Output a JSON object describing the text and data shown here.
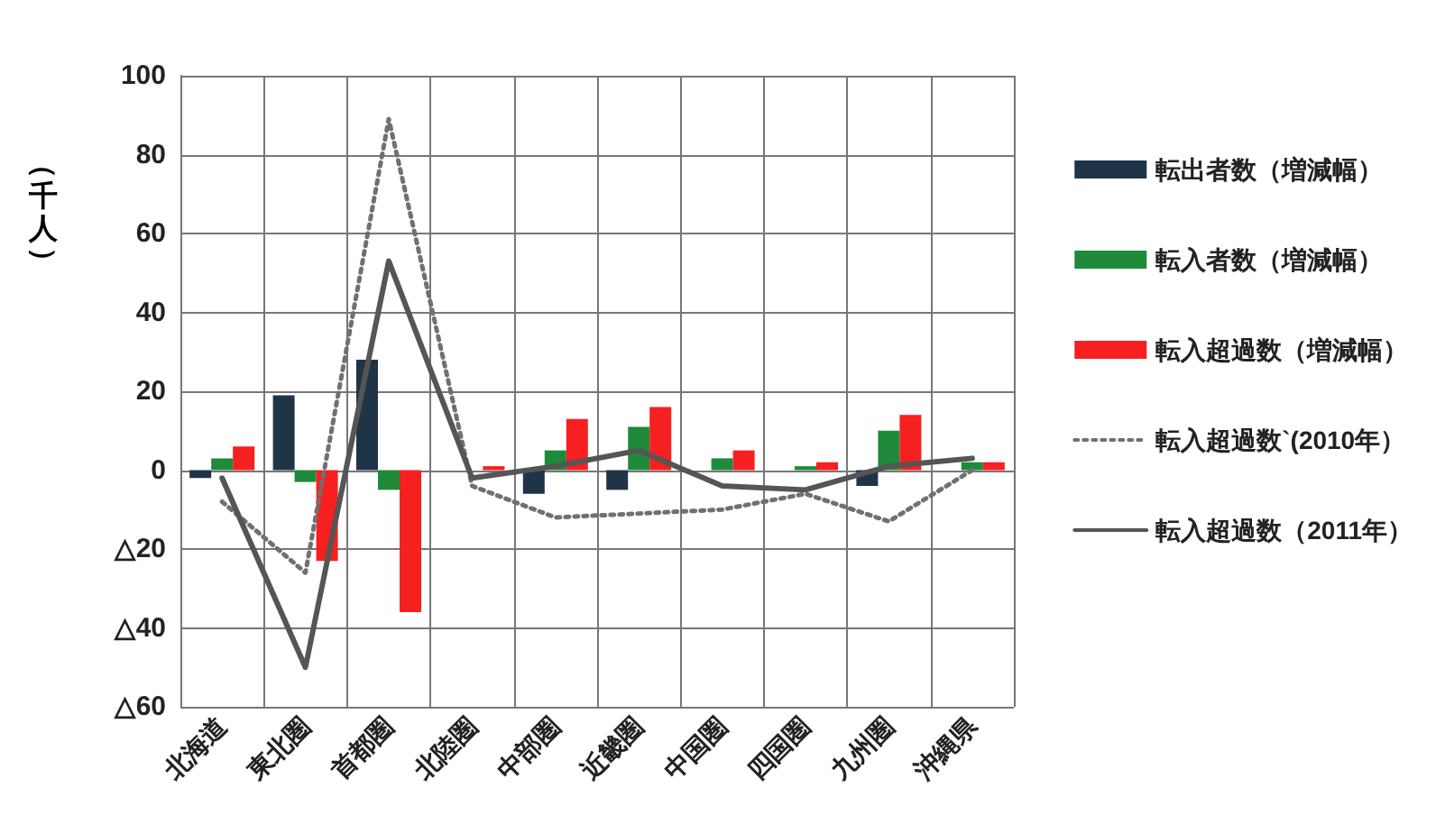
{
  "chart_data": {
    "type": "bar",
    "ylabel": "（千人）",
    "categories": [
      "北海道",
      "東北圏",
      "首都圏",
      "北陸圏",
      "中部圏",
      "近畿圏",
      "中国圏",
      "四国圏",
      "九州圏",
      "沖縄県"
    ],
    "series": [
      {
        "name": "転出者数（増減幅）",
        "color": "#1f3447",
        "values": [
          -2,
          19,
          28,
          0,
          -6,
          -5,
          0,
          0,
          -4,
          0
        ]
      },
      {
        "name": "転入者数（増減幅）",
        "color": "#1e8a3a",
        "values": [
          3,
          -3,
          -5,
          0,
          5,
          11,
          3,
          1,
          10,
          2
        ]
      },
      {
        "name": "転入超過数（増減幅）",
        "color": "#f5201f",
        "values": [
          6,
          -23,
          -36,
          1,
          13,
          16,
          5,
          2,
          14,
          2
        ]
      },
      {
        "name": "転入超過数`(2010年）",
        "type": "line",
        "line_style": "dotted",
        "color": "#707070",
        "values": [
          -8,
          -26,
          89,
          -4,
          -12,
          -11,
          -10,
          -6,
          -13,
          0
        ]
      },
      {
        "name": "転入超過数（2011年）",
        "type": "line",
        "line_style": "solid",
        "color": "#555555",
        "values": [
          -2,
          -50,
          53,
          -2,
          1,
          5,
          -4,
          -5,
          1,
          3
        ]
      }
    ],
    "ylim": [
      -60,
      100
    ],
    "yticks": [
      {
        "value": -60,
        "label": "△60"
      },
      {
        "value": -40,
        "label": "△40"
      },
      {
        "value": -20,
        "label": "△20"
      },
      0,
      20,
      40,
      60,
      80,
      100
    ],
    "grid": true,
    "legend": "right",
    "marker": "none"
  }
}
